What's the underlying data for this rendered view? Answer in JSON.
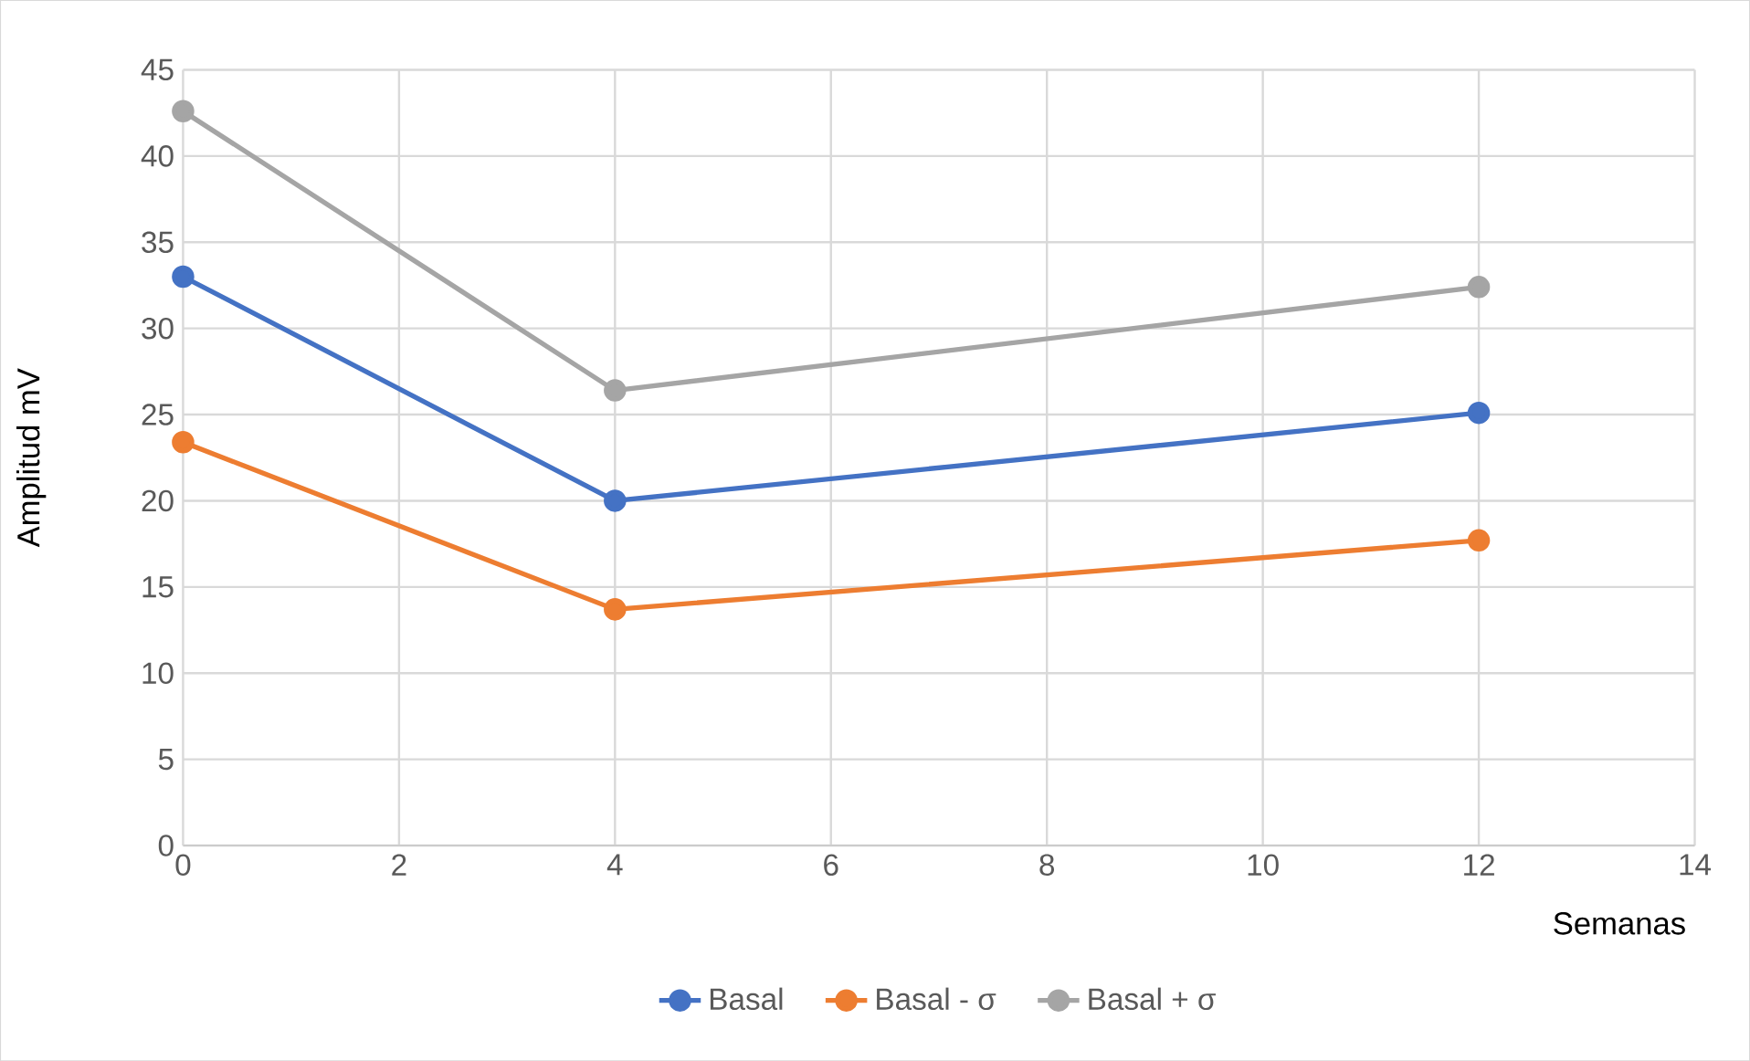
{
  "chart_data": {
    "type": "line",
    "xlabel": "Semanas",
    "ylabel": "Amplitud mV",
    "x": [
      0,
      4,
      12
    ],
    "series": [
      {
        "name": "Basal",
        "color": "#4472c4",
        "values": [
          33.0,
          20.0,
          25.1
        ]
      },
      {
        "name": "Basal - σ",
        "color": "#ed7d31",
        "values": [
          23.4,
          13.7,
          17.7
        ]
      },
      {
        "name": "Basal + σ",
        "color": "#a5a5a5",
        "values": [
          42.6,
          26.4,
          32.4
        ]
      }
    ],
    "xlim": [
      0,
      14
    ],
    "ylim": [
      0,
      45
    ],
    "xticks": [
      0,
      2,
      4,
      6,
      8,
      10,
      12,
      14
    ],
    "yticks": [
      0,
      5,
      10,
      15,
      20,
      25,
      30,
      35,
      40,
      45
    ],
    "grid": true,
    "legend": "bottom",
    "marker": "circle",
    "line_style": "solid"
  }
}
